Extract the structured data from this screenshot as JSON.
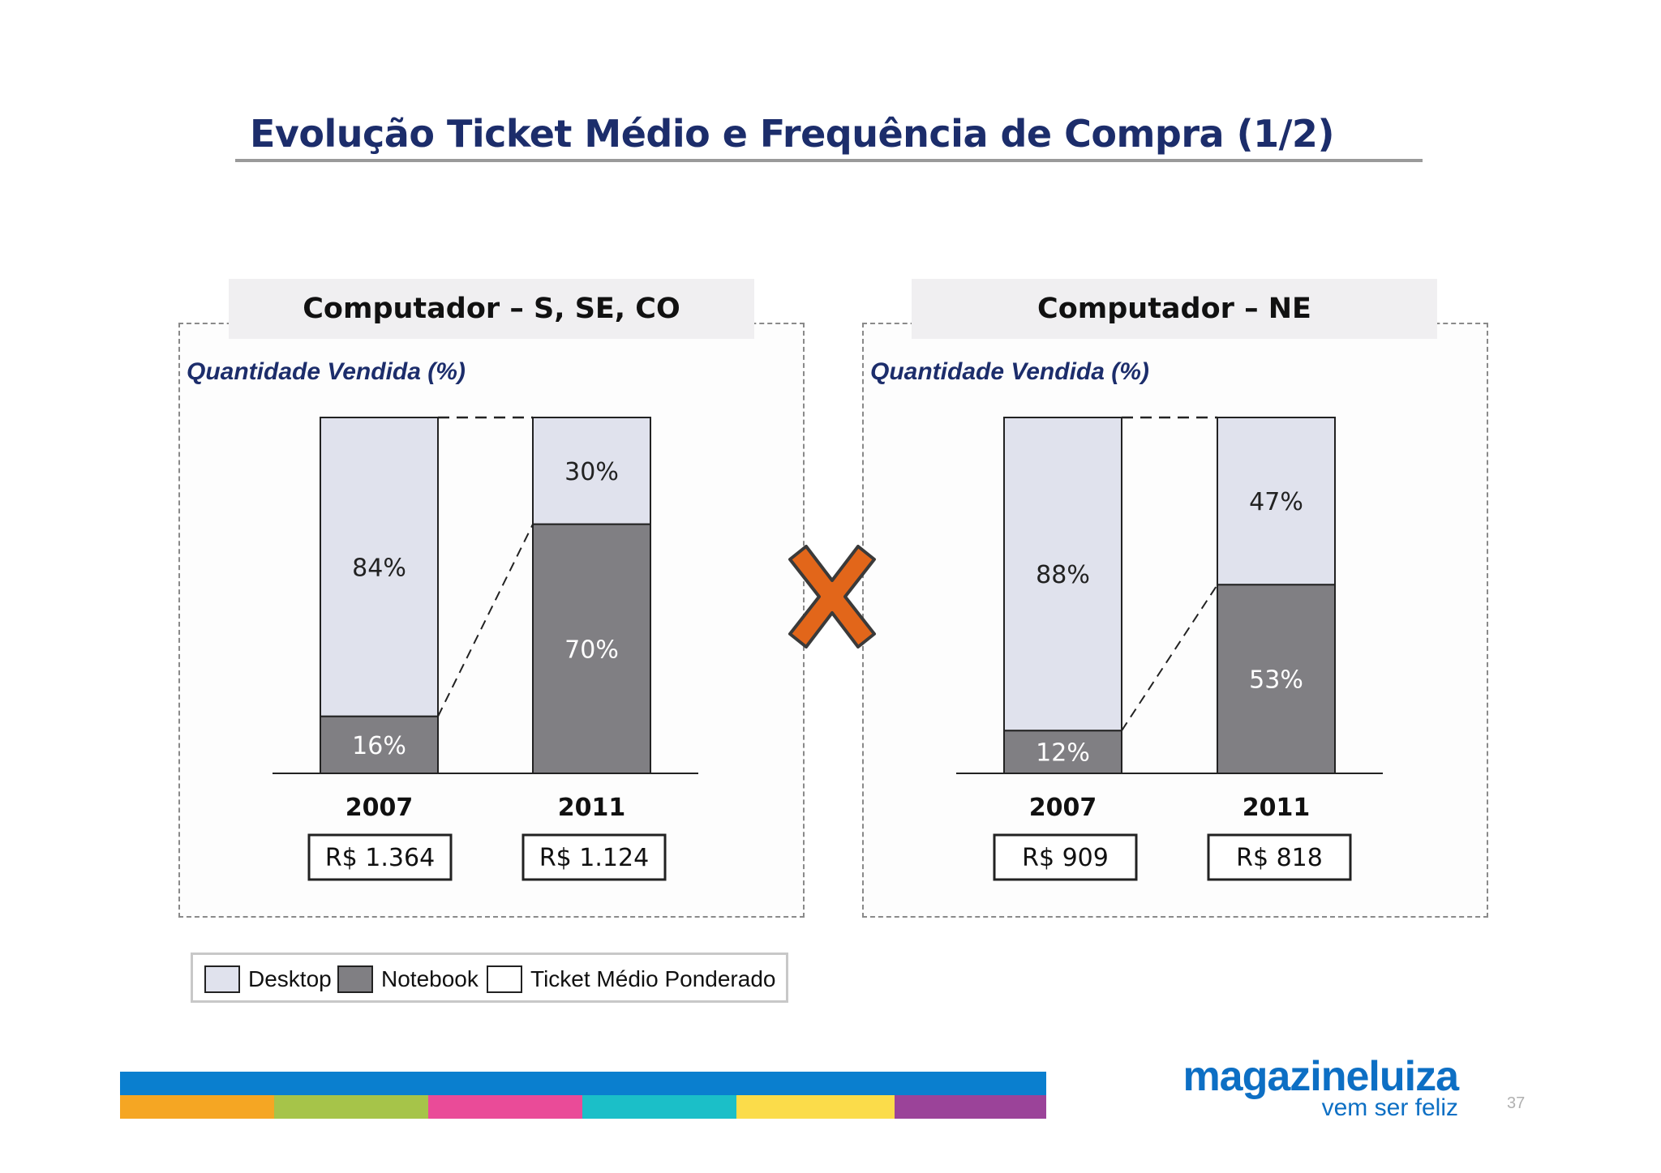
{
  "title": "Evolução Ticket Médio e Frequência de Compra (1/2)",
  "chart_data": [
    {
      "type": "bar",
      "stacked": true,
      "title": "Computador – S, SE, CO",
      "subtitle": "Quantidade Vendida (%)",
      "categories": [
        "2007",
        "2011"
      ],
      "series": [
        {
          "name": "Notebook",
          "values": [
            16,
            70
          ],
          "labels": [
            "16%",
            "70%"
          ],
          "color": "#807f83"
        },
        {
          "name": "Desktop",
          "values": [
            84,
            30
          ],
          "labels": [
            "84%",
            "30%"
          ],
          "color": "#e0e2ed"
        }
      ],
      "ticket_medio": [
        "R$ 1.364",
        "R$ 1.124"
      ],
      "ylim": [
        0,
        100
      ]
    },
    {
      "type": "bar",
      "stacked": true,
      "title": "Computador – NE",
      "subtitle": "Quantidade Vendida (%)",
      "categories": [
        "2007",
        "2011"
      ],
      "series": [
        {
          "name": "Notebook",
          "values": [
            12,
            53
          ],
          "labels": [
            "12%",
            "53%"
          ],
          "color": "#807f83"
        },
        {
          "name": "Desktop",
          "values": [
            88,
            47
          ],
          "labels": [
            "88%",
            "47%"
          ],
          "color": "#e0e2ed"
        }
      ],
      "ticket_medio": [
        "R$ 909",
        "R$ 818"
      ],
      "ylim": [
        0,
        100
      ]
    }
  ],
  "legend": {
    "desktop": "Desktop",
    "notebook": "Notebook",
    "ticket": "Ticket Médio Ponderado"
  },
  "colors": {
    "desktop": "#e0e2ed",
    "notebook": "#807f83",
    "title": "#1c2d6b",
    "x_mark": "#e2661a",
    "brand_blue": "#0d6fc4"
  },
  "footer": {
    "stripe_colors": [
      "#f5a623",
      "#a6c449",
      "#ea4b98",
      "#1bbfc8",
      "#fbdc4a",
      "#9b4399"
    ]
  },
  "logo": {
    "name": "magazineluiza",
    "tagline": "vem ser feliz"
  },
  "page_number": "37"
}
